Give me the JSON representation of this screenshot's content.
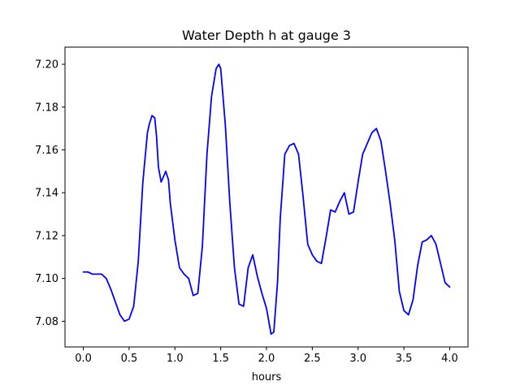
{
  "chart_data": {
    "type": "line",
    "title": "Water Depth h at gauge 3",
    "xlabel": "hours",
    "ylabel": "",
    "xlim": [
      -0.2,
      4.2
    ],
    "ylim": [
      7.068,
      7.208
    ],
    "x_ticks": [
      0.0,
      0.5,
      1.0,
      1.5,
      2.0,
      2.5,
      3.0,
      3.5,
      4.0
    ],
    "x_tick_labels": [
      "0.0",
      "0.5",
      "1.0",
      "1.5",
      "2.0",
      "2.5",
      "3.0",
      "3.5",
      "4.0"
    ],
    "y_ticks": [
      7.08,
      7.1,
      7.12,
      7.14,
      7.16,
      7.18,
      7.2
    ],
    "y_tick_labels": [
      "7.08",
      "7.10",
      "7.12",
      "7.14",
      "7.16",
      "7.18",
      "7.20"
    ],
    "grid": false,
    "series": [
      {
        "color": "#0000ff",
        "x": [
          0.0,
          0.05,
          0.1,
          0.15,
          0.2,
          0.25,
          0.3,
          0.35,
          0.4,
          0.45,
          0.5,
          0.55,
          0.6,
          0.65,
          0.7,
          0.72,
          0.75,
          0.78,
          0.8,
          0.82,
          0.85,
          0.88,
          0.9,
          0.93,
          0.95,
          1.0,
          1.05,
          1.1,
          1.15,
          1.2,
          1.25,
          1.3,
          1.35,
          1.4,
          1.45,
          1.48,
          1.5,
          1.55,
          1.6,
          1.65,
          1.7,
          1.75,
          1.8,
          1.85,
          1.9,
          1.95,
          2.0,
          2.05,
          2.08,
          2.12,
          2.15,
          2.2,
          2.25,
          2.3,
          2.35,
          2.4,
          2.45,
          2.5,
          2.55,
          2.6,
          2.65,
          2.7,
          2.75,
          2.8,
          2.85,
          2.9,
          2.95,
          3.0,
          3.05,
          3.1,
          3.15,
          3.2,
          3.25,
          3.3,
          3.35,
          3.4,
          3.45,
          3.5,
          3.55,
          3.6,
          3.65,
          3.7,
          3.75,
          3.8,
          3.85,
          3.9,
          3.95,
          4.0
        ],
        "y": [
          7.103,
          7.103,
          7.102,
          7.102,
          7.102,
          7.1,
          7.095,
          7.089,
          7.083,
          7.08,
          7.081,
          7.087,
          7.108,
          7.145,
          7.168,
          7.172,
          7.176,
          7.175,
          7.166,
          7.152,
          7.145,
          7.148,
          7.15,
          7.146,
          7.135,
          7.118,
          7.105,
          7.102,
          7.1,
          7.092,
          7.093,
          7.115,
          7.158,
          7.185,
          7.198,
          7.2,
          7.198,
          7.172,
          7.135,
          7.105,
          7.088,
          7.087,
          7.105,
          7.111,
          7.101,
          7.093,
          7.086,
          7.074,
          7.075,
          7.098,
          7.128,
          7.158,
          7.162,
          7.163,
          7.158,
          7.138,
          7.116,
          7.111,
          7.108,
          7.107,
          7.119,
          7.132,
          7.131,
          7.136,
          7.14,
          7.13,
          7.131,
          7.145,
          7.158,
          7.163,
          7.168,
          7.17,
          7.164,
          7.15,
          7.135,
          7.118,
          7.094,
          7.085,
          7.083,
          7.09,
          7.106,
          7.117,
          7.118,
          7.12,
          7.116,
          7.107,
          7.098,
          7.096
        ]
      }
    ]
  }
}
